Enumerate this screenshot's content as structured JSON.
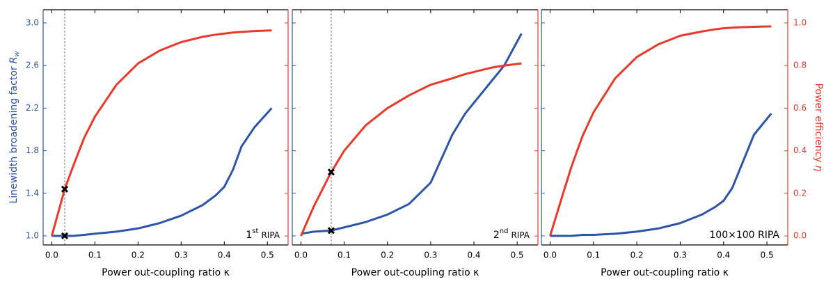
{
  "chart_data": [
    {
      "type": "line",
      "x_label": "Power out-coupling ratio κ",
      "y_label": "Linewidth broadening factor",
      "y_label_symbol": "R",
      "y_label_sub": "w",
      "annotation": [
        "1",
        "st",
        "RIPA"
      ],
      "x": [
        0,
        0.03,
        0.05,
        0.075,
        0.1,
        0.15,
        0.2,
        0.25,
        0.3,
        0.35,
        0.38,
        0.4,
        0.42,
        0.44,
        0.47,
        0.51
      ],
      "series": [
        {
          "color": "#2b55a8",
          "values": [
            1.0,
            1.0,
            1.0,
            1.01,
            1.02,
            1.04,
            1.07,
            1.12,
            1.19,
            1.29,
            1.38,
            1.46,
            1.62,
            1.84,
            2.02,
            2.2
          ]
        },
        {
          "color": "#e8392a",
          "axis": "y2",
          "values": [
            0,
            0.22,
            0.33,
            0.46,
            0.56,
            0.71,
            0.81,
            0.87,
            0.91,
            0.935,
            0.945,
            0.95,
            0.955,
            0.958,
            0.962,
            0.965
          ]
        }
      ],
      "vline": 0.03,
      "markers": [
        {
          "x": 0.03,
          "y": 1.0
        },
        {
          "x": 0.03,
          "y": 0.22,
          "axis": "y2"
        }
      ],
      "xlim": [
        -0.02,
        0.548
      ],
      "xticks": [
        {
          "value": 0,
          "label": "0.0"
        },
        {
          "value": 0.1,
          "label": "0.1"
        },
        {
          "value": 0.2,
          "label": "0.2"
        },
        {
          "value": 0.3,
          "label": "0.3"
        },
        {
          "value": 0.4,
          "label": "0.4"
        },
        {
          "value": 0.5,
          "label": "0.5"
        }
      ],
      "ylim": [
        0.915,
        3.124
      ],
      "yticks": [
        {
          "value": 1.0,
          "label": "1.0"
        },
        {
          "value": 1.4,
          "label": "1.4"
        },
        {
          "value": 1.8,
          "label": "1.8"
        },
        {
          "value": 2.2,
          "label": "2.2"
        },
        {
          "value": 2.6,
          "label": "2.6"
        },
        {
          "value": 3.0,
          "label": "3.0"
        }
      ],
      "y2lim": [
        -0.042,
        1.062
      ],
      "y2ticks": [
        0,
        0.2,
        0.4,
        0.6,
        0.8,
        1
      ]
    },
    {
      "type": "line",
      "x_label": "Power out-coupling ratio κ",
      "annotation": [
        "2",
        "nd",
        "RIPA"
      ],
      "x": [
        0,
        0.03,
        0.05,
        0.07,
        0.1,
        0.15,
        0.2,
        0.25,
        0.3,
        0.35,
        0.38,
        0.4,
        0.42,
        0.44,
        0.47,
        0.51
      ],
      "series": [
        {
          "color": "#2b55a8",
          "values": [
            1.02,
            1.04,
            1.045,
            1.05,
            1.08,
            1.13,
            1.2,
            1.3,
            1.5,
            1.95,
            2.15,
            2.25,
            2.35,
            2.45,
            2.6,
            2.9
          ]
        },
        {
          "color": "#e8392a",
          "axis": "y2",
          "values": [
            0,
            0.14,
            0.22,
            0.3,
            0.4,
            0.52,
            0.6,
            0.66,
            0.71,
            0.74,
            0.76,
            0.77,
            0.78,
            0.79,
            0.8,
            0.81
          ]
        }
      ],
      "vline": 0.07,
      "markers": [
        {
          "x": 0.07,
          "y": 1.05
        },
        {
          "x": 0.07,
          "y": 0.3,
          "axis": "y2"
        }
      ],
      "xlim": [
        -0.02,
        0.548
      ],
      "xticks": [
        {
          "value": 0,
          "label": "0.0"
        },
        {
          "value": 0.1,
          "label": "0.1"
        },
        {
          "value": 0.2,
          "label": "0.2"
        },
        {
          "value": 0.3,
          "label": "0.3"
        },
        {
          "value": 0.4,
          "label": "0.4"
        },
        {
          "value": 0.5,
          "label": "0.5"
        }
      ],
      "ylim": [
        0.915,
        3.124
      ],
      "yticks": [
        1.0,
        1.4,
        1.8,
        2.2,
        2.6,
        3.0
      ],
      "y2lim": [
        -0.042,
        1.062
      ],
      "y2ticks": [
        0,
        0.2,
        0.4,
        0.6,
        0.8,
        1
      ]
    },
    {
      "type": "line",
      "x_label": "Power out-coupling ratio κ",
      "y2_label": "Power efficiency",
      "y2_label_symbol": "η",
      "annotation": [
        "100×100 RIPA"
      ],
      "x": [
        0,
        0.03,
        0.05,
        0.075,
        0.1,
        0.15,
        0.2,
        0.25,
        0.3,
        0.35,
        0.38,
        0.4,
        0.42,
        0.44,
        0.47,
        0.51
      ],
      "series": [
        {
          "color": "#2b55a8",
          "values": [
            1.0,
            1.0,
            1.0,
            1.01,
            1.01,
            1.02,
            1.04,
            1.07,
            1.12,
            1.2,
            1.27,
            1.33,
            1.45,
            1.65,
            1.95,
            2.15
          ]
        },
        {
          "color": "#e8392a",
          "axis": "y2",
          "values": [
            0,
            0.2,
            0.33,
            0.47,
            0.58,
            0.74,
            0.84,
            0.9,
            0.94,
            0.96,
            0.97,
            0.975,
            0.978,
            0.98,
            0.982,
            0.984
          ]
        }
      ],
      "xlim": [
        -0.02,
        0.548
      ],
      "xticks": [
        {
          "value": 0,
          "label": "0.0"
        },
        {
          "value": 0.1,
          "label": "0.1"
        },
        {
          "value": 0.2,
          "label": "0.2"
        },
        {
          "value": 0.3,
          "label": "0.3"
        },
        {
          "value": 0.4,
          "label": "0.4"
        },
        {
          "value": 0.5,
          "label": "0.5"
        }
      ],
      "ylim": [
        0.915,
        3.124
      ],
      "yticks": [
        1.0,
        1.4,
        1.8,
        2.2,
        2.6,
        3.0
      ],
      "y2lim": [
        -0.042,
        1.062
      ],
      "y2ticks": [
        {
          "value": 0,
          "label": "0.0"
        },
        {
          "value": 0.2,
          "label": "0.2"
        },
        {
          "value": 0.4,
          "label": "0.4"
        },
        {
          "value": 0.6,
          "label": "0.6"
        },
        {
          "value": 0.8,
          "label": "0.8"
        },
        {
          "value": 1,
          "label": "1.0"
        }
      ]
    }
  ]
}
